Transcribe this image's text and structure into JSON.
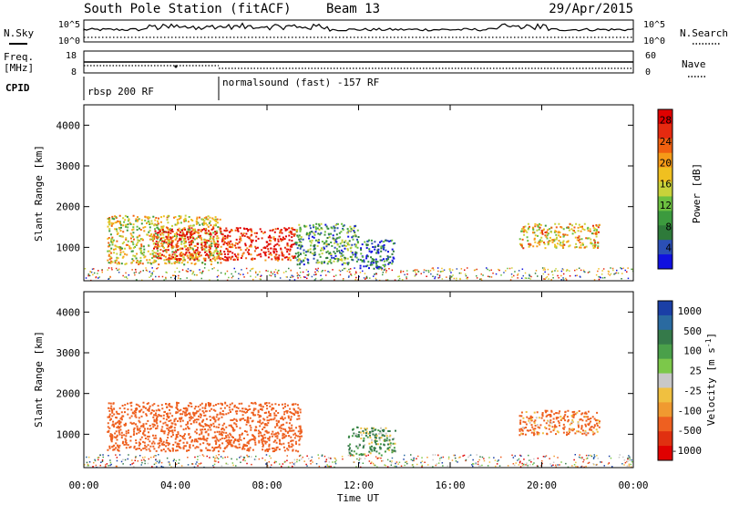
{
  "header": {
    "station": "South Pole Station (fitACF)",
    "beam": "Beam 13",
    "date": "29/Apr/2015"
  },
  "strips": {
    "nsky_label": "N.Sky",
    "nsky_ticks": [
      "10^5",
      "10^0"
    ],
    "nsearch_label": "N.Search",
    "nsearch_ticks": [
      "10^5",
      "10^0"
    ],
    "freq_label_1": "Freq.",
    "freq_label_2": "[MHz]",
    "freq_ticks": [
      "18",
      "8"
    ],
    "nave_label": "Nave",
    "nave_ticks": [
      "60",
      "0"
    ],
    "cpid_label": "CPID",
    "cpid_segments": [
      "rbsp 200 RF",
      "normalsound (fast) -157 RF"
    ]
  },
  "colors": {
    "power": [
      "#1010e0",
      "#2b4fb5",
      "#2e7a3a",
      "#3c9a3e",
      "#6cc040",
      "#c8d23a",
      "#f0c020",
      "#f59a18",
      "#f06010",
      "#e52a10",
      "#e00000"
    ],
    "velocity": [
      "#1a3fa6",
      "#2a6aa0",
      "#357a4a",
      "#4aa04a",
      "#7cc84a",
      "#c8c8c8",
      "#f0c040",
      "#f09a30",
      "#ee6020",
      "#e03010",
      "#e00000"
    ]
  },
  "chart_data": [
    {
      "type": "heatmap",
      "name": "power-panel",
      "xlabel": "",
      "ylabel": "Slant Range [km]",
      "x_ticks": [
        "00:00",
        "04:00",
        "08:00",
        "12:00",
        "16:00",
        "20:00",
        "00:00"
      ],
      "xlim": [
        0,
        24
      ],
      "ylim": [
        180,
        4500
      ],
      "y_ticks": [
        1000,
        2000,
        3000,
        4000
      ],
      "colorbar": {
        "label": "Power [dB]",
        "ticks": [
          4,
          8,
          12,
          16,
          20,
          24,
          28
        ],
        "range": [
          0,
          30
        ]
      },
      "regions": [
        {
          "t": [
            1.0,
            6.0
          ],
          "r": [
            600,
            1800
          ],
          "level": 0.55
        },
        {
          "t": [
            3.0,
            9.2
          ],
          "r": [
            700,
            1500
          ],
          "level": 0.9
        },
        {
          "t": [
            9.2,
            12.0
          ],
          "r": [
            600,
            1600
          ],
          "level": 0.3
        },
        {
          "t": [
            12.0,
            13.6
          ],
          "r": [
            500,
            1200
          ],
          "level": 0.15
        },
        {
          "t": [
            19.0,
            22.5
          ],
          "r": [
            1000,
            1600
          ],
          "level": 0.6
        }
      ]
    },
    {
      "type": "heatmap",
      "name": "velocity-panel",
      "xlabel": "Time UT",
      "ylabel": "Slant Range [km]",
      "x_ticks": [
        "00:00",
        "04:00",
        "08:00",
        "12:00",
        "16:00",
        "20:00",
        "00:00"
      ],
      "xlim": [
        0,
        24
      ],
      "ylim": [
        180,
        4500
      ],
      "y_ticks": [
        1000,
        2000,
        3000,
        4000
      ],
      "colorbar": {
        "label": "Velocity [m s^-1]",
        "ticks": [
          1000,
          500,
          100,
          25,
          -25,
          -100,
          -500,
          -1000
        ]
      },
      "regions": [
        {
          "t": [
            1.0,
            9.5
          ],
          "r": [
            600,
            1800
          ],
          "velocity": -300
        },
        {
          "t": [
            11.5,
            13.6
          ],
          "r": [
            500,
            1200
          ],
          "velocity": 100
        },
        {
          "t": [
            19.0,
            22.5
          ],
          "r": [
            1000,
            1600
          ],
          "velocity": -200
        }
      ]
    }
  ]
}
